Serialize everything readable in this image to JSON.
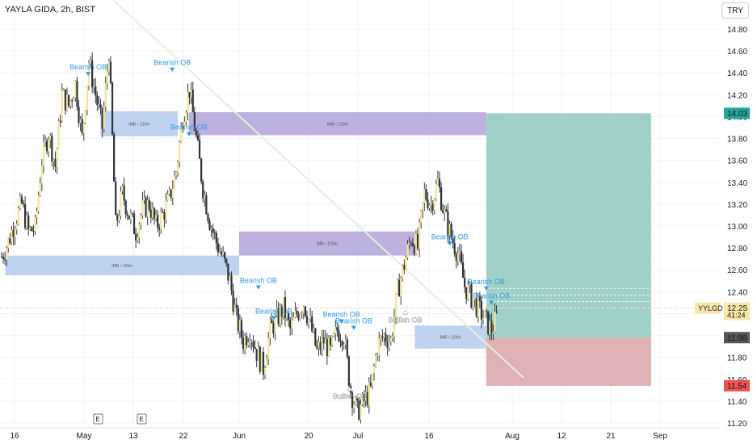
{
  "chart_data": {
    "type": "candlestick",
    "title": "YAYLA GIDA, 2h, BIST",
    "currency": "TRY",
    "symbol": "YYLGD",
    "ylim": [
      11.15,
      14.95
    ],
    "y_ticks": [
      "14.80",
      "14.60",
      "14.40",
      "14.20",
      "14.00",
      "13.80",
      "13.60",
      "13.40",
      "13.20",
      "13.00",
      "12.80",
      "12.60",
      "12.40",
      "12.20",
      "12.00",
      "11.80",
      "11.60",
      "11.40",
      "11.20"
    ],
    "x_ticks": [
      "16",
      "May",
      "13",
      "22",
      "Jun",
      "20",
      "Jul",
      "16",
      "Aug",
      "12",
      "21",
      "Sep"
    ],
    "price_labels": [
      {
        "value": 14.03,
        "text": "14.03",
        "color": "#26a69a"
      },
      {
        "value": 12.25,
        "text": "12.25",
        "sub": "41:24",
        "color": "#f7e9a8"
      },
      {
        "value": 11.98,
        "text": "11.98",
        "color": "#555555"
      },
      {
        "value": 11.54,
        "text": "11.54",
        "color": "#ef5350"
      }
    ],
    "symbol_tag": "YYLGD",
    "series_close": [
      12.72,
      12.85,
      13.05,
      13.2,
      12.95,
      12.98,
      13.6,
      13.85,
      13.55,
      14.2,
      14.1,
      14.3,
      13.8,
      14.5,
      14.2,
      13.9,
      14.6,
      13.0,
      13.3,
      13.1,
      12.95,
      13.15,
      13.2,
      13.0,
      13.1,
      13.25,
      13.5,
      14.0,
      14.25,
      13.8,
      13.35,
      13.05,
      12.85,
      12.7,
      12.5,
      12.15,
      11.95,
      12.05,
      11.85,
      11.7,
      12.05,
      12.15,
      12.25,
      12.05,
      12.2,
      12.3,
      12.1,
      11.85,
      11.95,
      11.85,
      12.05,
      12.0,
      11.5,
      11.3,
      11.4,
      11.5,
      11.9,
      12.0,
      11.95,
      12.4,
      12.65,
      12.9,
      12.8,
      13.3,
      13.2,
      13.4,
      13.1,
      12.9,
      12.75,
      12.45,
      12.35,
      12.25,
      12.15,
      12.05,
      12.2
    ],
    "annotations": [
      {
        "text": "Bearish OB",
        "x": "May 2",
        "y": 14.43,
        "color": "#2f9ce8"
      },
      {
        "text": "Bearish OB",
        "x": "May 20",
        "y": 14.47,
        "color": "#2f9ce8"
      },
      {
        "text": "Bearish OB",
        "x": "May 23",
        "y": 13.88,
        "color": "#2f9ce8"
      },
      {
        "text": "Bearish OB",
        "x": "Jun 6",
        "y": 12.48,
        "color": "#2f9ce8"
      },
      {
        "text": "Bearish OB",
        "x": "Jun 10",
        "y": 12.2,
        "color": "#2f9ce8"
      },
      {
        "text": "Bearish OB",
        "x": "Jun 27",
        "y": 12.17,
        "color": "#2f9ce8"
      },
      {
        "text": "Bearish OB",
        "x": "Jun 30",
        "y": 12.11,
        "color": "#2f9ce8"
      },
      {
        "text": "Bullish OB",
        "x": "Jul 11",
        "y": 12.12,
        "color": "#ffffff"
      },
      {
        "text": "Bullish OB",
        "x": "Jun 29",
        "y": 11.42,
        "color": "#ffffff"
      },
      {
        "text": "Bearish OB",
        "x": "Jul 20",
        "y": 12.88,
        "color": "#2f9ce8"
      },
      {
        "text": "Bearish OB",
        "x": "Jul 27",
        "y": 12.47,
        "color": "#2f9ce8"
      },
      {
        "text": "Bearish OB",
        "x": "Jul 28",
        "y": 12.34,
        "color": "#2f9ce8"
      }
    ],
    "imbalance_label": "IMB • 120m",
    "zones": [
      {
        "kind": "imb-blue",
        "from": "May 5",
        "to": "May 21",
        "y1": 14.05,
        "y2": 13.82
      },
      {
        "kind": "imb-purple",
        "from": "May 23",
        "to": "Jul 27",
        "y1": 14.04,
        "y2": 13.83
      },
      {
        "kind": "imb-blue",
        "from": "Apr 14",
        "to": "Jun 1",
        "y1": 12.73,
        "y2": 12.55
      },
      {
        "kind": "imb-purple",
        "from": "Jun 1",
        "to": "Jul 13",
        "y1": 12.95,
        "y2": 12.73
      },
      {
        "kind": "imb-blue",
        "from": "Jul 13",
        "to": "Jul 27",
        "y1": 12.09,
        "y2": 11.88
      },
      {
        "kind": "target",
        "from": "Jul 27",
        "to": "Aug 30",
        "y1": 14.03,
        "y2": 11.98
      },
      {
        "kind": "stop",
        "from": "Jul 27",
        "to": "Aug 30",
        "y1": 11.98,
        "y2": 11.54
      }
    ]
  },
  "ui": {
    "currency_button": "TRY",
    "earnings_markers": [
      "E",
      "E"
    ]
  }
}
